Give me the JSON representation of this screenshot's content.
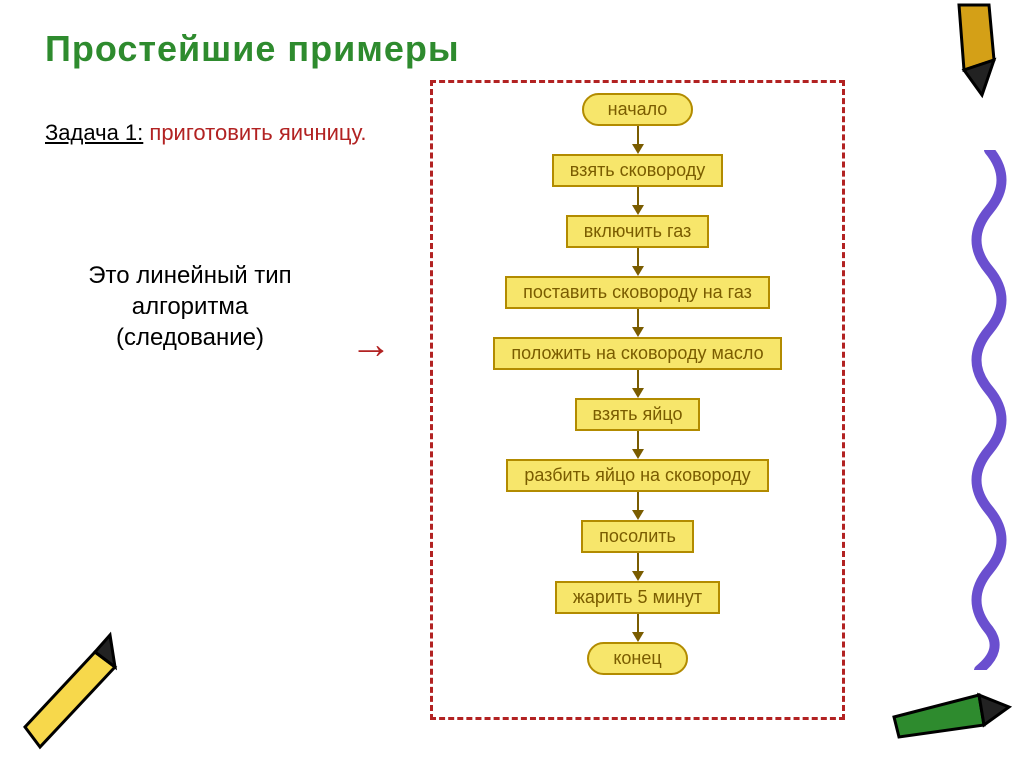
{
  "title": "Простейшие примеры",
  "title_color": "#2e8b2e",
  "task_label": "Задача 1:",
  "task_label_color": "#000000",
  "task_text": "приготовить яичницу.",
  "task_text_color": "#b22222",
  "algo_line1": "Это линейный тип",
  "algo_line2": "алгоритма",
  "algo_line3": "(следование)",
  "algo_color": "#000000",
  "arrow_symbol": "→",
  "arrow_color": "#b22222",
  "flowchart": {
    "border_color": "#b22222",
    "node_fill": "#f7e66b",
    "node_border": "#b28b00",
    "node_text_color": "#7a5c00",
    "arrow_color": "#7a5c00",
    "connector_height": 18,
    "nodes": [
      {
        "label": "начало",
        "type": "terminator"
      },
      {
        "label": "взять сковороду",
        "type": "process"
      },
      {
        "label": "включить газ",
        "type": "process"
      },
      {
        "label": "поставить сковороду на газ",
        "type": "process"
      },
      {
        "label": "положить на сковороду масло",
        "type": "process"
      },
      {
        "label": "взять яйцо",
        "type": "process"
      },
      {
        "label": "разбить яйцо на сковороду",
        "type": "process"
      },
      {
        "label": "посолить",
        "type": "process"
      },
      {
        "label": "жарить 5 минут",
        "type": "process"
      },
      {
        "label": "конец",
        "type": "terminator"
      }
    ]
  },
  "decorations": {
    "pencil_tr_body": "#d4a017",
    "pencil_tr_tip": "#222222",
    "squiggle_color": "#6a4fcf",
    "pencil_green_body": "#2e8b2e",
    "pencil_green_tip": "#222222",
    "pencil_yellow_body": "#f7d84b",
    "pencil_yellow_tip": "#222222"
  }
}
